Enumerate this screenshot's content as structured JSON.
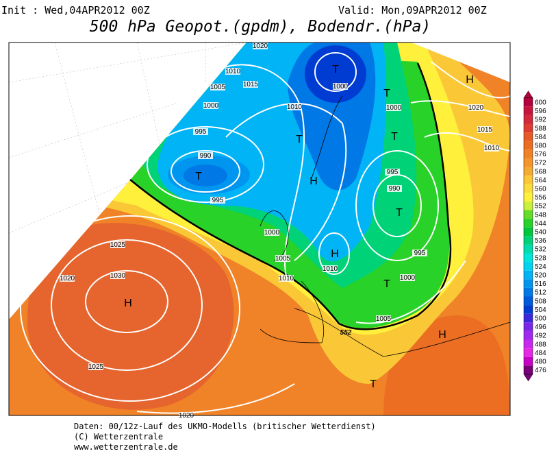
{
  "header": {
    "init": "Init : Wed,04APR2012 00Z",
    "valid": "Valid: Mon,09APR2012 00Z",
    "title": "500 hPa Geopot.(gpdm), Bodendr.(hPa)"
  },
  "map": {
    "labels": [
      "1020",
      "1010",
      "1005",
      "1015",
      "1000",
      "1010",
      "1000",
      "1000",
      "995",
      "990",
      "995",
      "1020",
      "1015",
      "1010",
      "995",
      "990",
      "1000",
      "1005",
      "1010",
      "1010",
      "995",
      "1000",
      "1005",
      "1025",
      "1020",
      "1030",
      "1025",
      "1020",
      "552"
    ],
    "centers": [
      "T",
      "T",
      "T",
      "T",
      "H",
      "T",
      "H",
      "T",
      "H",
      "T",
      "H",
      "H",
      "T"
    ]
  },
  "colorbar": {
    "labels": [
      "600",
      "596",
      "592",
      "588",
      "584",
      "580",
      "576",
      "572",
      "568",
      "564",
      "560",
      "556",
      "552",
      "548",
      "544",
      "540",
      "536",
      "532",
      "528",
      "524",
      "520",
      "516",
      "512",
      "508",
      "504",
      "500",
      "496",
      "492",
      "488",
      "484",
      "480",
      "476"
    ],
    "colors": [
      "#b4003c",
      "#c8143c",
      "#d2283c",
      "#dc3c32",
      "#e65a28",
      "#eb6e23",
      "#f08228",
      "#f5962d",
      "#f5aa32",
      "#fac837",
      "#fadc3c",
      "#fff03c",
      "#c8f03c",
      "#64dc28",
      "#28d228",
      "#00c83c",
      "#00d278",
      "#00dcaa",
      "#00e6dc",
      "#00d2f0",
      "#00b4f5",
      "#0096f0",
      "#0078e6",
      "#005adc",
      "#003cd2",
      "#3c28dc",
      "#7828e6",
      "#a028f0",
      "#c828f0",
      "#e628e6",
      "#c800c8",
      "#780078"
    ]
  },
  "footer": {
    "line1": "Daten: 00/12z-Lauf des UKMO-Modells (britischer Wetterdienst)",
    "line2": "(C) Wetterzentrale",
    "line3": "www.wetterzentrale.de"
  }
}
